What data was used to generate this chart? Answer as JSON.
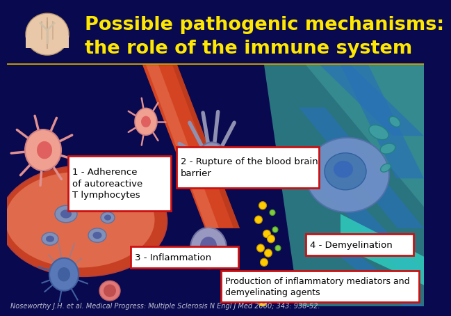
{
  "title_line1": "Possible pathogenic mechanisms:",
  "title_line2": "the role of the immune system",
  "title_color": "#FFE800",
  "title_bg_color": "#1a1ab0",
  "title_fontsize": 19.5,
  "main_bg_color": "#090950",
  "label1_title": "1 - Adherence\nof autoreactive\nT lymphocytes",
  "label2_title": "2 - Rupture of the blood brain\nbarrier",
  "label3_title": "3 - Inflammation",
  "label4_title": "4 - Demyelination",
  "label5_title": "Production of inflammatory mediators and\ndemyelinating agents",
  "label_bg": "#ffffff",
  "label_border": "#cc1111",
  "label_fontsize": 9.5,
  "citation": "Noseworthy J.H. et al. Medical Progress: Multiple Sclerosis N Engl J Med 2000; 343: 938-52.",
  "citation_color": "#c0c0d0",
  "citation_fontsize": 7.0,
  "brain_color": "#e8c8a8",
  "vessel_color": "#d44422",
  "vessel_highlight": "#e87858",
  "vessel_dark": "#a83318",
  "blob_color": "#e06848",
  "blob_inner": "#f08868",
  "cell_blue": "#8090b8",
  "cell_blue_dark": "#5060a0",
  "tcell_color": "#f0a090",
  "tcell_nucleus": "#e06060",
  "breach_color": "#9090b0",
  "teal_color": "#308888",
  "teal_light": "#40a0a0",
  "teal_stripe": "#50c0c0",
  "blue_band": "#2870b8",
  "demyel_cell": "#7090c8",
  "demyel_nucleus": "#4878b0",
  "yellow_dot": "#ffcc00",
  "green_dot": "#80cc40",
  "neuron_color": "#5878b8",
  "pink_small": "#e07878"
}
